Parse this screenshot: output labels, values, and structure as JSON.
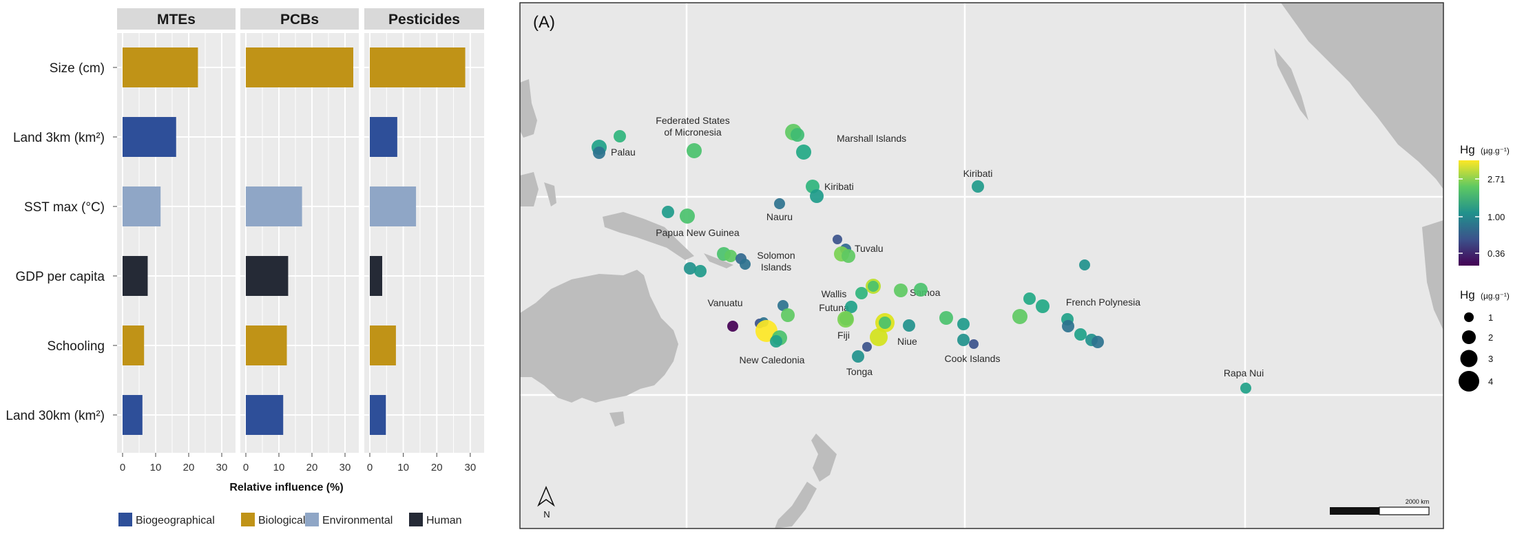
{
  "chart_data": [
    {
      "type": "bar",
      "orientation": "horizontal",
      "facets": [
        "MTEs",
        "PCBs",
        "Pesticides"
      ],
      "categories": [
        "Size (cm)",
        "Land 3km (km²)",
        "SST max (°C)",
        "GDP per capita",
        "Schooling",
        "Land 30km (km²)"
      ],
      "category_groups": [
        "Biological",
        "Biogeographical",
        "Environmental",
        "Human",
        "Biological",
        "Biogeographical"
      ],
      "series": [
        {
          "name": "MTEs",
          "values": [
            22.8,
            16.2,
            11.5,
            7.6,
            6.5,
            6.0
          ]
        },
        {
          "name": "PCBs",
          "values": [
            32.5,
            0,
            17.0,
            12.8,
            12.4,
            11.3
          ]
        },
        {
          "name": "Pesticides",
          "values": [
            28.5,
            8.2,
            13.8,
            3.7,
            7.8,
            4.8
          ]
        }
      ],
      "xlabel": "Relative influence (%)",
      "xticks": [
        "0",
        "10",
        "20",
        "30"
      ],
      "xlim": [
        0,
        32.5
      ],
      "legend": {
        "placement": "bottom",
        "items": [
          {
            "label": "Biogeographical",
            "color": "#2e4f99"
          },
          {
            "label": "Biological",
            "color": "#c09317"
          },
          {
            "label": "Environmental",
            "color": "#8fa6c6"
          },
          {
            "label": "Human",
            "color": "#252a36"
          }
        ]
      }
    },
    {
      "type": "scatter",
      "subtype": "map",
      "panel_label": "(A)",
      "region_labels": [
        "Palau",
        "Federated States of Micronesia",
        "Marshall Islands",
        "Kiribati",
        "Kiribati",
        "Nauru",
        "Papua New Guinea",
        "Tuvalu",
        "Solomon Islands",
        "Wallis",
        "Futuna",
        "Samoa",
        "Vanuatu",
        "Fiji",
        "Niue",
        "New Caledonia",
        "Tonga",
        "Cook Islands",
        "French Polynesia",
        "Rapa Nui"
      ],
      "scale_bar_label": "2000 km",
      "north_arrow": "N",
      "color_legend": {
        "title": "Hg",
        "unit": "(µg.g⁻¹)",
        "ticks": [
          "2.71",
          "1.00",
          "0.36"
        ],
        "colors": [
          "#fde725",
          "#5ec962",
          "#21918c",
          "#3b528b",
          "#440154"
        ]
      },
      "size_legend": {
        "title": "Hg",
        "unit": "(µg.g⁻¹)",
        "values": [
          "1",
          "2",
          "3",
          "4"
        ]
      }
    }
  ]
}
